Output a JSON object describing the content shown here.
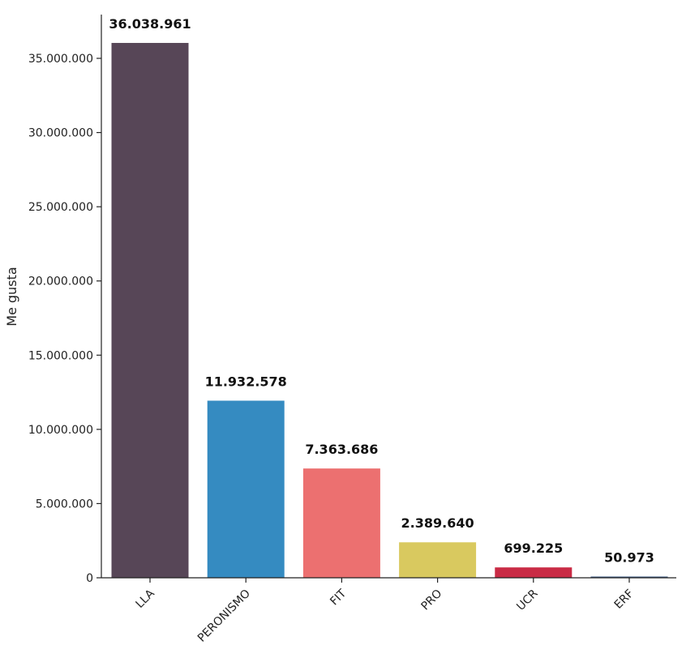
{
  "chart_data": {
    "type": "bar",
    "title": "",
    "xlabel": "",
    "ylabel": "Me gusta",
    "categories": [
      "LLA",
      "PERONISMO",
      "FIT",
      "PRO",
      "UCR",
      "ERF"
    ],
    "values": [
      36038961,
      11932578,
      7363686,
      2389640,
      699225,
      50973
    ],
    "value_labels": [
      "36.038.961",
      "11.932.578",
      "7.363.686",
      "2.389.640",
      "699.225",
      "50.973"
    ],
    "colors": [
      "#574657",
      "#358bc1",
      "#ec7070",
      "#d9c95f",
      "#c92b45",
      "#3e5b86"
    ],
    "yticks": [
      0,
      5000000,
      10000000,
      15000000,
      20000000,
      25000000,
      30000000,
      35000000
    ],
    "ytick_labels": [
      "0",
      "5.000.000",
      "10.000.000",
      "15.000.000",
      "20.000.000",
      "25.000.000",
      "30.000.000",
      "35.000.000"
    ],
    "ylim": [
      0,
      37840000
    ],
    "grid": false,
    "legend": "none"
  }
}
